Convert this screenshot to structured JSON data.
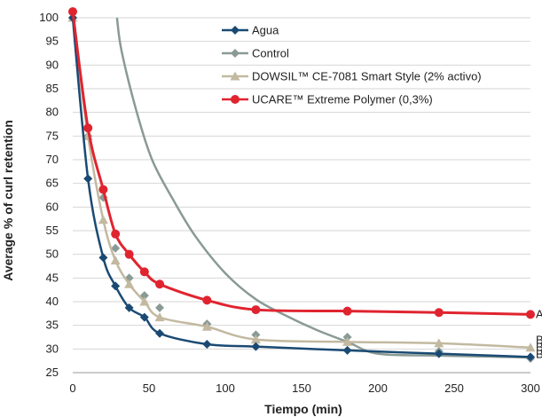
{
  "chart_data": {
    "type": "line",
    "xlabel": "Tiempo (min)",
    "ylabel": "Average % of curl retention",
    "xlim": [
      0,
      300
    ],
    "ylim": [
      25,
      100
    ],
    "xticks": [
      0,
      50,
      100,
      150,
      200,
      250,
      300
    ],
    "yticks": [
      25,
      30,
      35,
      40,
      45,
      50,
      55,
      60,
      65,
      70,
      75,
      80,
      85,
      90,
      95,
      100
    ],
    "grid": "horizontal",
    "legend_position": "top-right",
    "series": [
      {
        "name": "Agua",
        "color": "#1a4a73",
        "marker": "diamond",
        "points": [
          [
            0,
            100
          ],
          [
            10,
            66
          ],
          [
            20,
            49.3
          ],
          [
            28,
            43.3
          ],
          [
            37,
            38.7
          ],
          [
            47,
            36.7
          ],
          [
            57,
            33.3
          ],
          [
            88,
            31
          ],
          [
            120,
            30.5
          ],
          [
            180,
            29.7
          ],
          [
            240,
            29
          ],
          [
            300,
            28.3
          ]
        ]
      },
      {
        "name": "Control",
        "color": "#8a9a94",
        "marker": "diamond",
        "points": [
          [
            0,
            100
          ],
          [
            10,
            75
          ],
          [
            20,
            62
          ],
          [
            28,
            51.3
          ],
          [
            37,
            45
          ],
          [
            47,
            41.3
          ],
          [
            57,
            38.7
          ],
          [
            88,
            35.3
          ],
          [
            120,
            33
          ],
          [
            180,
            32.5
          ],
          [
            240,
            29.5
          ],
          [
            300,
            28
          ]
        ]
      },
      {
        "name": "DOWSIL™ CE-7081 Smart Style (2% activo)",
        "color": "#c2b9a0",
        "marker": "triangle",
        "points": [
          [
            0,
            100
          ],
          [
            10,
            75
          ],
          [
            20,
            57.3
          ],
          [
            28,
            48.7
          ],
          [
            37,
            43.7
          ],
          [
            47,
            40
          ],
          [
            57,
            36.7
          ],
          [
            88,
            34.7
          ],
          [
            120,
            32
          ],
          [
            180,
            31.5
          ],
          [
            240,
            31.2
          ],
          [
            300,
            30.3
          ]
        ]
      },
      {
        "name": "UCARE™ Extreme Polymer (0,3%)",
        "color": "#e0242f",
        "marker": "circle",
        "points": [
          [
            0,
            101.3
          ],
          [
            10,
            76.7
          ],
          [
            20,
            63.7
          ],
          [
            28,
            54.3
          ],
          [
            37,
            50
          ],
          [
            47,
            46.3
          ],
          [
            57,
            43.7
          ],
          [
            88,
            40.3
          ],
          [
            120,
            38.3
          ],
          [
            180,
            38
          ],
          [
            240,
            37.7
          ],
          [
            300,
            37.3
          ]
        ]
      }
    ],
    "control_curve": [
      [
        29,
        100
      ],
      [
        32,
        93
      ],
      [
        42,
        80
      ],
      [
        52,
        70
      ],
      [
        65,
        62
      ],
      [
        80,
        54
      ],
      [
        100,
        46
      ],
      [
        120,
        40.5
      ],
      [
        140,
        37
      ],
      [
        160,
        34
      ],
      [
        180,
        31.5
      ],
      [
        200,
        29
      ],
      [
        240,
        28.6
      ],
      [
        300,
        28.2
      ]
    ],
    "end_labels": [
      "A",
      "B",
      "B",
      "B"
    ]
  }
}
